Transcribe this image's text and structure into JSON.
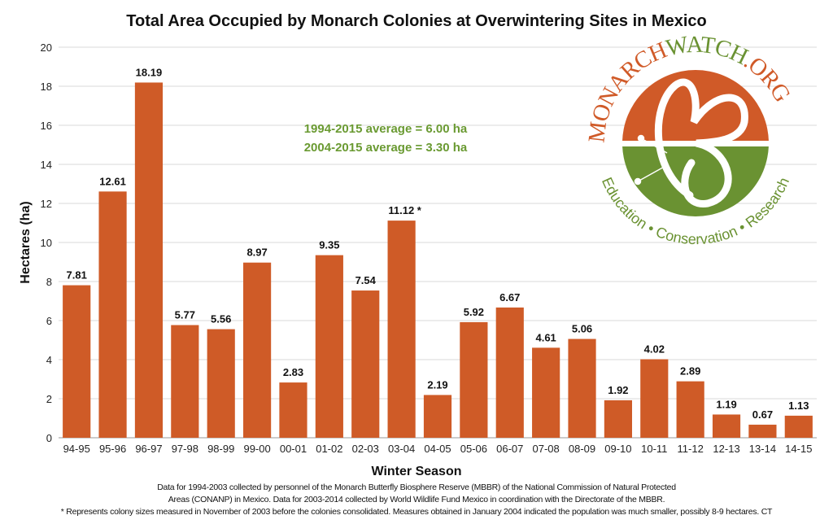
{
  "chart_data": {
    "type": "bar",
    "title": "Total Area Occupied by Monarch Colonies at Overwintering Sites in Mexico",
    "xlabel": "Winter Season",
    "ylabel": "Hectares (ha)",
    "ylim": [
      0,
      20
    ],
    "yticks": [
      0,
      2,
      4,
      6,
      8,
      10,
      12,
      14,
      16,
      18,
      20
    ],
    "grid": true,
    "categories": [
      "94-95",
      "95-96",
      "96-97",
      "97-98",
      "98-99",
      "99-00",
      "00-01",
      "01-02",
      "02-03",
      "03-04",
      "04-05",
      "05-06",
      "06-07",
      "07-08",
      "08-09",
      "09-10",
      "10-11",
      "11-12",
      "12-13",
      "13-14",
      "14-15"
    ],
    "values": [
      7.81,
      12.61,
      18.19,
      5.77,
      5.56,
      8.97,
      2.83,
      9.35,
      7.54,
      11.12,
      2.19,
      5.92,
      6.67,
      4.61,
      5.06,
      1.92,
      4.02,
      2.89,
      1.19,
      0.67,
      1.13
    ],
    "data_labels": [
      "7.81",
      "12.61",
      "18.19",
      "5.77",
      "5.56",
      "8.97",
      "2.83",
      "9.35",
      "7.54",
      "11.12 *",
      "2.19",
      "5.92",
      "6.67",
      "4.61",
      "5.06",
      "1.92",
      "4.02",
      "2.89",
      "1.19",
      "0.67",
      "1.13"
    ],
    "bar_color": "#cf5b27",
    "annotations": [
      "1994-2015 average = 6.00 ha",
      "2004-2015 average = 3.30 ha"
    ],
    "annotation_color": "#6a9a32"
  },
  "logo": {
    "text_orange": "MONARCH",
    "text_green": "WATCH.ORG",
    "tagline": "Education • Conservation • Research",
    "orange": "#d05a28",
    "green": "#6a9232"
  },
  "notes": [
    "Data for 1994-2003 collected by personnel of the Monarch Butterfly Biosphere Reserve (MBBR) of the National Commission of Natural Protected",
    "Areas (CONANP) in Mexico. Data for 2003-2014 collected by World Wildlife Fund Mexico in coordination with the Directorate of the MBBR.",
    "* Represents colony sizes measured in November of 2003 before the colonies consolidated. Measures obtained in January 2004 indicated the population was much smaller, possibly 8-9 hectares. CT"
  ]
}
